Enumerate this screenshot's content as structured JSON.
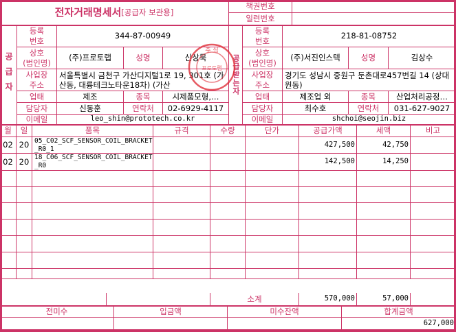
{
  "header": {
    "title": "전자거래명세서",
    "subtitle": "[공급자 보관용]",
    "book_number_label": "책권번호",
    "book_number_value": "",
    "serial_number_label": "일련번호",
    "serial_number_value": ""
  },
  "labels": {
    "reg_no": "등록\n번호",
    "company": "상호\n(법인명)",
    "rep": "성명",
    "address": "사업장\n주소",
    "business_type": "업태",
    "item_type": "종목",
    "manager": "담당자",
    "contact": "연락처",
    "email": "이메일"
  },
  "supplier": {
    "side_label": "공급자",
    "reg_no": "344-87-00949",
    "company": "(주)프로토랩",
    "rep": "신상묵",
    "address": "서울특별시 금천구 가산디지털1로 19, 301호 (가산동, 대륭테크노타운18차) (가산",
    "business_type": "제조",
    "item_type": "시제품모형,…",
    "manager": "신동훈",
    "contact": "02-6929-4117",
    "email": "leo_shin@prototech.co.kr",
    "stamp_text": "주식회사 프로토랩"
  },
  "receiver": {
    "side_label": "공급받는자",
    "reg_no": "218-81-08752",
    "company": "(주)서진인스텍",
    "rep": "김상수",
    "address": "경기도 성남시 중원구 둔촌대로457번길 14 (상대원동)",
    "business_type": "제조업 외",
    "item_type": "산업처리공정…",
    "manager": "최수호",
    "contact": "031-627-9027",
    "email": "shchoi@seojin.biz"
  },
  "items_table": {
    "columns": [
      "월",
      "일",
      "품목",
      "규격",
      "수량",
      "단가",
      "공급가액",
      "세액",
      "비고"
    ],
    "rows": [
      {
        "month": "02",
        "day": "20",
        "item": "05_C02_SCF_SENSOR_COIL_BRACKET_R0_1",
        "spec": "",
        "qty": "",
        "unit_price": "",
        "supply": "427,500",
        "tax": "42,750",
        "note": ""
      },
      {
        "month": "02",
        "day": "20",
        "item": "18_C06_SCF_SENSOR_COIL_BRACKET_R0",
        "spec": "",
        "qty": "",
        "unit_price": "",
        "supply": "142,500",
        "tax": "14,250",
        "note": ""
      }
    ],
    "subtotal_label": "소계",
    "subtotal_supply": "570,000",
    "subtotal_tax": "57,000"
  },
  "totals": {
    "prev_unpaid_label": "전미수",
    "deposit_label": "입금액",
    "unpaid_balance_label": "미수잔액",
    "total_label": "합계금액",
    "prev_unpaid": "",
    "deposit": "",
    "unpaid_balance": "",
    "total": "627,000"
  },
  "colors": {
    "accent": "#cc3366",
    "stamp": "#e0303a"
  }
}
